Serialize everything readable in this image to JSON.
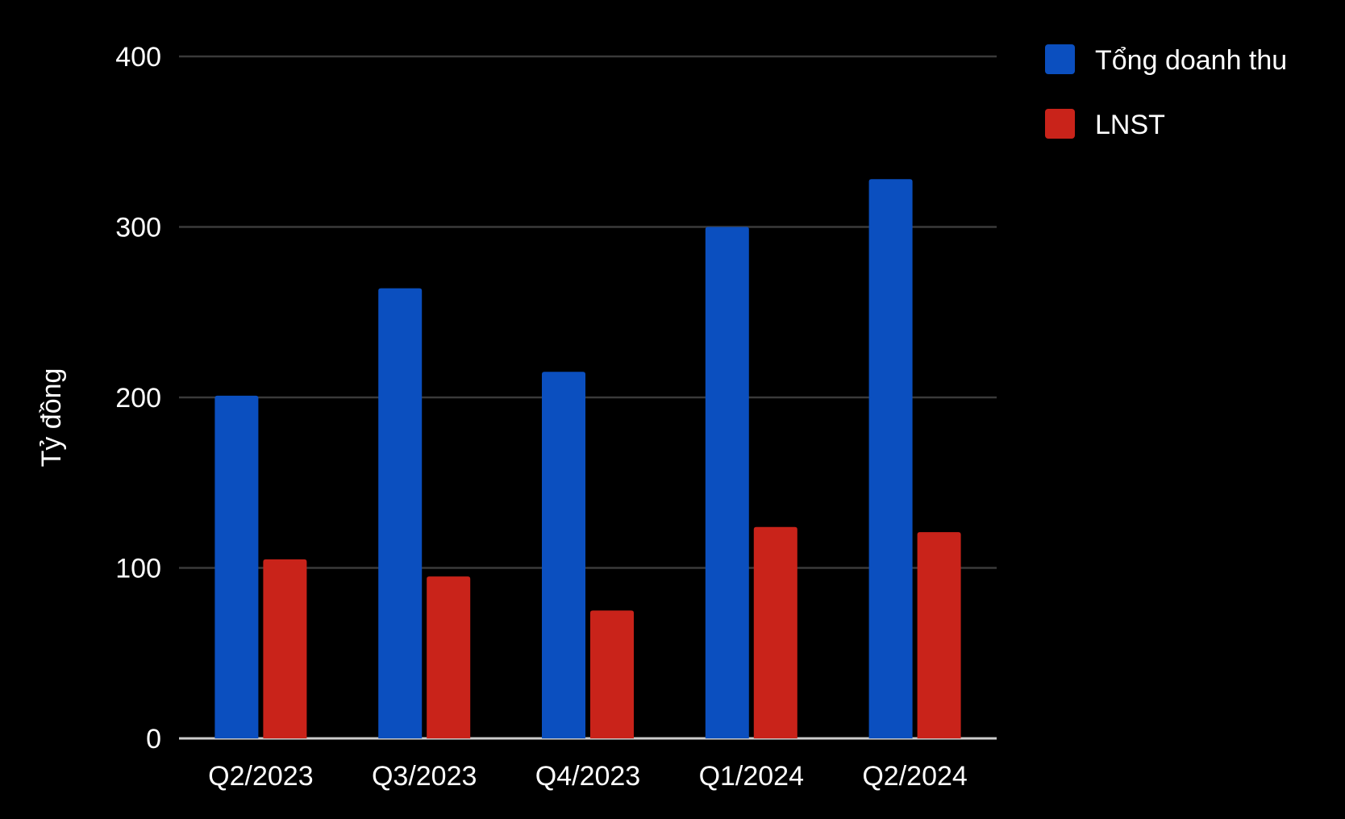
{
  "chart_data": {
    "type": "bar",
    "categories": [
      "Q2/2023",
      "Q3/2023",
      "Q4/2023",
      "Q1/2024",
      "Q2/2024"
    ],
    "series": [
      {
        "name": "Tổng doanh thu",
        "color": "#0b4fbf",
        "values": [
          201,
          264,
          215,
          300,
          328
        ]
      },
      {
        "name": "LNST",
        "color": "#c9231a",
        "values": [
          105,
          95,
          75,
          124,
          121
        ]
      }
    ],
    "title": "",
    "xlabel": "",
    "ylabel": "Tỷ đồng",
    "ylim": [
      0,
      400
    ],
    "yticks": [
      0,
      100,
      200,
      300,
      400
    ],
    "grid": true,
    "legend": "top-right",
    "colors": {
      "background": "#000000",
      "gridline": "#3a3a3a",
      "baseline": "#cccccc",
      "text": "#ffffff"
    }
  }
}
